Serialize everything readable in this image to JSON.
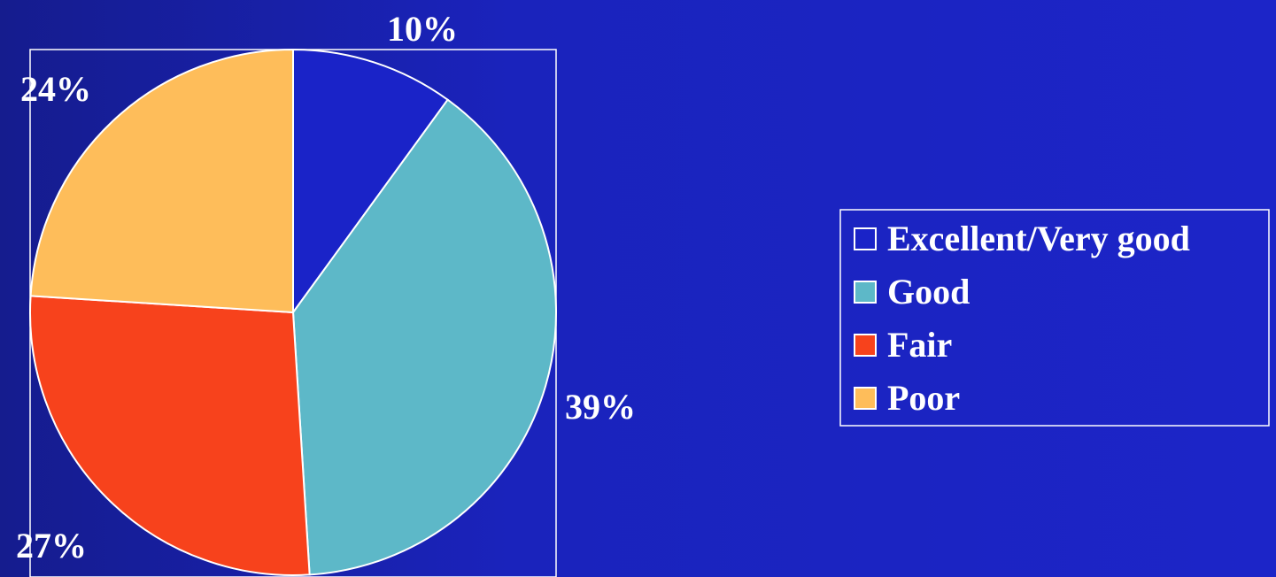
{
  "chart_data": {
    "type": "pie",
    "categories": [
      "Excellent/Very good",
      "Good",
      "Fair",
      "Poor"
    ],
    "values": [
      10,
      39,
      27,
      24
    ],
    "data_labels": [
      "10%",
      "39%",
      "27%",
      "24%"
    ],
    "colors": [
      "#1A23C8",
      "#5DB8C8",
      "#F7421C",
      "#FEBD5A"
    ],
    "legend_swatch_colors": [
      "#1A23C8",
      "#5DB8C8",
      "#F7421C",
      "#FEBD5A"
    ],
    "start_angle_deg": 0,
    "direction": "clockwise",
    "legend_position": "right",
    "slice_outline_color": "#FFFFFF",
    "frame_color": "#FFFFFF"
  },
  "background_color": "#1A23BC"
}
